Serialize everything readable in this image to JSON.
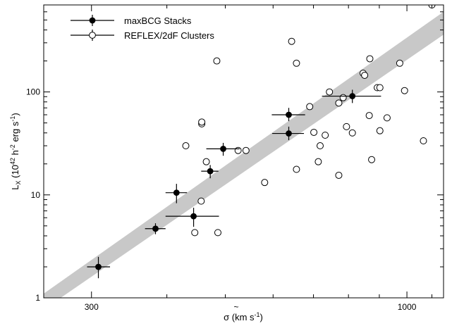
{
  "chart_data": {
    "type": "scatter",
    "title": "",
    "xlabel": "σ̃ (km s⁻¹)",
    "xlabel_parts": {
      "base": "σ",
      "rest": " (km s",
      "sup": "-1",
      "close": ")"
    },
    "ylabel_parts": {
      "base": "L",
      "sub": "X",
      "open": " (10",
      "sup1": "42",
      "mid": " h",
      "sup2": "-2",
      "rest": " erg s",
      "sup3": "-1",
      "close": ")"
    },
    "x_scale": "log",
    "y_scale": "log",
    "xlim": [
      250,
      1150
    ],
    "ylim": [
      1,
      700
    ],
    "x_ticks": [
      300,
      1000
    ],
    "x_tick_labels": [
      "300",
      "1000"
    ],
    "y_ticks": [
      1,
      10,
      100
    ],
    "y_tick_labels": [
      "1",
      "10",
      "100"
    ],
    "grid": false,
    "legend_position": "top-left",
    "band": {
      "color": "#c8c8c8",
      "x": [
        250,
        1150
      ],
      "lower": [
        0.77,
        360
      ],
      "upper": [
        1.1,
        600
      ]
    },
    "series": [
      {
        "name": "maxBCG Stacks",
        "marker": "filled-circle",
        "points": [
          {
            "x": 308,
            "y": 2.0,
            "xlo": 295,
            "xhi": 322,
            "ylo": 1.55,
            "yhi": 2.5
          },
          {
            "x": 383,
            "y": 4.7,
            "xlo": 368,
            "xhi": 398,
            "ylo": 4.15,
            "yhi": 5.3
          },
          {
            "x": 415,
            "y": 10.5,
            "xlo": 398,
            "xhi": 432,
            "ylo": 8.3,
            "yhi": 12.8
          },
          {
            "x": 443,
            "y": 6.2,
            "xlo": 398,
            "xhi": 488,
            "ylo": 4.9,
            "yhi": 7.5
          },
          {
            "x": 472,
            "y": 17.0,
            "xlo": 456,
            "xhi": 487,
            "ylo": 14.5,
            "yhi": 19.5
          },
          {
            "x": 496,
            "y": 28.0,
            "xlo": 465,
            "xhi": 528,
            "ylo": 24.0,
            "yhi": 32.0
          },
          {
            "x": 637,
            "y": 39.5,
            "xlo": 598,
            "xhi": 675,
            "ylo": 34.0,
            "yhi": 46.0
          },
          {
            "x": 637,
            "y": 60.0,
            "xlo": 597,
            "xhi": 678,
            "ylo": 52.0,
            "yhi": 70.0
          },
          {
            "x": 812,
            "y": 91.0,
            "xlo": 723,
            "xhi": 906,
            "ylo": 78.0,
            "yhi": 105.0
          }
        ]
      },
      {
        "name": "REFLEX/2dF Clusters",
        "marker": "open-circle",
        "points": [
          {
            "x": 445,
            "y": 4.3
          },
          {
            "x": 486,
            "y": 4.3
          },
          {
            "x": 456,
            "y": 8.7
          },
          {
            "x": 581,
            "y": 13.2
          },
          {
            "x": 656,
            "y": 17.7
          },
          {
            "x": 465,
            "y": 21.0
          },
          {
            "x": 525,
            "y": 27.0
          },
          {
            "x": 430,
            "y": 30.0
          },
          {
            "x": 541,
            "y": 27.0
          },
          {
            "x": 457,
            "y": 49.0
          },
          {
            "x": 457,
            "y": 51.0
          },
          {
            "x": 484,
            "y": 200
          },
          {
            "x": 644,
            "y": 310
          },
          {
            "x": 656,
            "y": 190
          },
          {
            "x": 690,
            "y": 72
          },
          {
            "x": 701,
            "y": 40.5
          },
          {
            "x": 713,
            "y": 21.0
          },
          {
            "x": 718,
            "y": 30.0
          },
          {
            "x": 732,
            "y": 38.0
          },
          {
            "x": 744,
            "y": 100
          },
          {
            "x": 771,
            "y": 78
          },
          {
            "x": 771,
            "y": 15.5
          },
          {
            "x": 784,
            "y": 88
          },
          {
            "x": 794,
            "y": 46
          },
          {
            "x": 812,
            "y": 40.0
          },
          {
            "x": 846,
            "y": 152
          },
          {
            "x": 851,
            "y": 145
          },
          {
            "x": 866,
            "y": 59
          },
          {
            "x": 868,
            "y": 210
          },
          {
            "x": 874,
            "y": 22
          },
          {
            "x": 893,
            "y": 110
          },
          {
            "x": 902,
            "y": 110
          },
          {
            "x": 902,
            "y": 42
          },
          {
            "x": 927,
            "y": 56
          },
          {
            "x": 973,
            "y": 190
          },
          {
            "x": 991,
            "y": 103
          },
          {
            "x": 1065,
            "y": 33.5
          },
          {
            "x": 1100,
            "y": 700
          }
        ]
      }
    ]
  }
}
